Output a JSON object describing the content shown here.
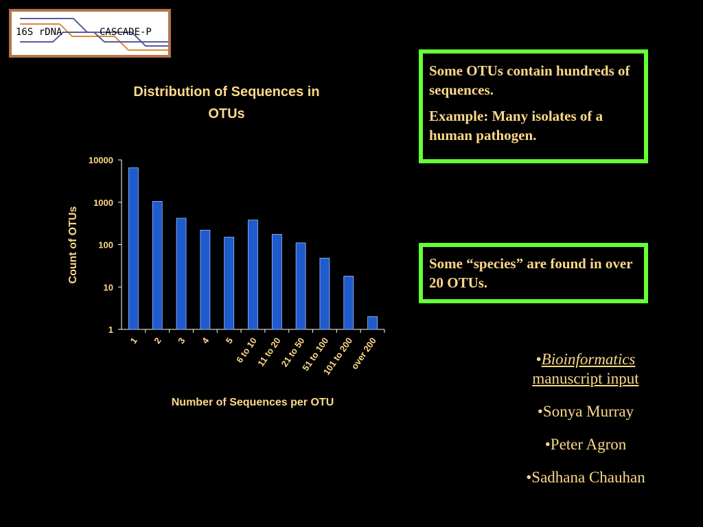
{
  "logo": {
    "text_left": "16S rDNA",
    "text_right": "CASCADE-P",
    "colors": {
      "border": "#b5744a",
      "line_blue": "#5a5a9a",
      "line_orange": "#d98a3c"
    }
  },
  "chart_data": {
    "type": "bar",
    "title": "Distribution of Sequences in OTUs",
    "xlabel": "Number of Sequences per OTU",
    "ylabel": "Count of OTUs",
    "yscale": "log",
    "ylim": [
      1,
      10000
    ],
    "yticks": [
      "1",
      "10",
      "100",
      "1000",
      "10000"
    ],
    "categories": [
      "1",
      "2",
      "3",
      "4",
      "5",
      "6 to 10",
      "11 to 20",
      "21 to 50",
      "51 to 100",
      "101 to 200",
      "over 200"
    ],
    "values": [
      6500,
      1050,
      420,
      220,
      150,
      380,
      175,
      110,
      48,
      18,
      2
    ],
    "colors": {
      "bar": "#1f5bcc",
      "text": "#fdd98a",
      "axis": "#ffffff"
    }
  },
  "box1": {
    "line1": "Some OTUs contain hundreds of sequences.",
    "line2": "Example: Many isolates of a human pathogen."
  },
  "box2": {
    "line1": "Some “species” are found in over 20 OTUs."
  },
  "credits": {
    "bullet": "•",
    "link_italic": "Bioinformatics",
    "link_rest": "manuscript input",
    "names": [
      "•Sonya Murray",
      "•Peter Agron",
      "•Sadhana Chauhan"
    ]
  }
}
